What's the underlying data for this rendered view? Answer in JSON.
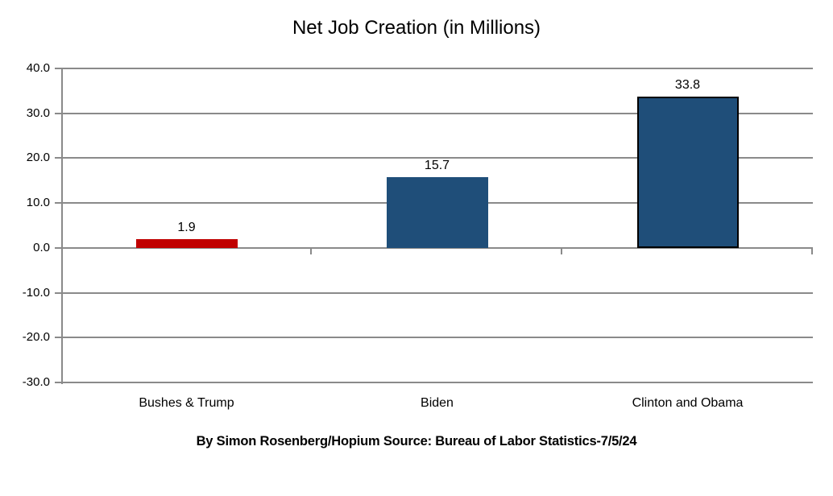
{
  "chart_data": {
    "type": "bar",
    "title": "Net Job Creation (in Millions)",
    "categories": [
      "Bushes & Trump",
      "Biden",
      "Clinton and Obama"
    ],
    "values": [
      1.9,
      15.7,
      33.8
    ],
    "data_labels": [
      "1.9",
      "15.7",
      "33.8"
    ],
    "bar_colors": [
      "#c00000",
      "#1f4e79",
      "#1f4e79"
    ],
    "bar_has_outline": [
      false,
      false,
      true
    ],
    "outline_color": "#000000",
    "xlabel": "",
    "ylabel": "",
    "ylim": [
      -30,
      40
    ],
    "ytick_step": 10,
    "ytick_labels": [
      "40.0",
      "30.0",
      "20.0",
      "10.0",
      "0.0",
      "-10.0",
      "-20.0",
      "-30.0"
    ],
    "grid": true,
    "grid_color": "#8a8a8a",
    "axis_color": "#8a8a8a",
    "legend_position": "none",
    "footer": "By Simon Rosenberg/Hopium Source: Bureau of Labor Statistics-7/5/24"
  }
}
